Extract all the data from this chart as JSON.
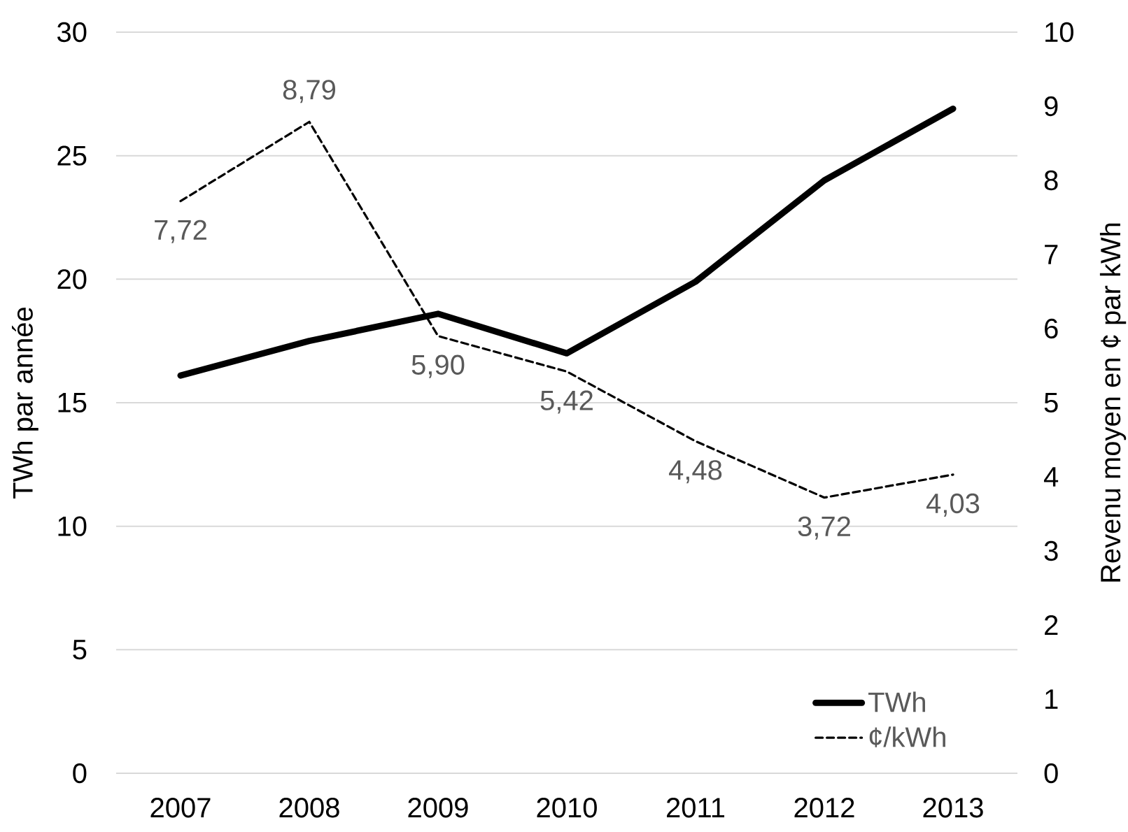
{
  "chart_data": {
    "type": "line",
    "categories": [
      "2007",
      "2008",
      "2009",
      "2010",
      "2011",
      "2012",
      "2013"
    ],
    "ylabel": "TWh par année",
    "y2label": "Revenu moyen en ¢ par kWh",
    "ylim": [
      0,
      30
    ],
    "yticks": [
      0,
      5,
      10,
      15,
      20,
      25,
      30
    ],
    "y2lim": [
      0,
      10
    ],
    "y2ticks": [
      0,
      1,
      2,
      3,
      4,
      5,
      6,
      7,
      8,
      9,
      10
    ],
    "grid": "y",
    "legend": "bottom right",
    "series": [
      {
        "name": "TWh",
        "color": "#000000",
        "line_style": "solid",
        "values": [
          16.1,
          17.5,
          18.6,
          17.0,
          19.9,
          24.0,
          26.9
        ]
      },
      {
        "name": "¢/kWh",
        "color": "#000000",
        "line_style": "dashed",
        "axis": "y2",
        "values": [
          7.72,
          8.79,
          5.9,
          5.42,
          4.48,
          3.72,
          4.03
        ],
        "value_labels": [
          "7,72",
          "8,79",
          "5,90",
          "5,42",
          "4,48",
          "3,72",
          "4,03"
        ]
      }
    ]
  }
}
